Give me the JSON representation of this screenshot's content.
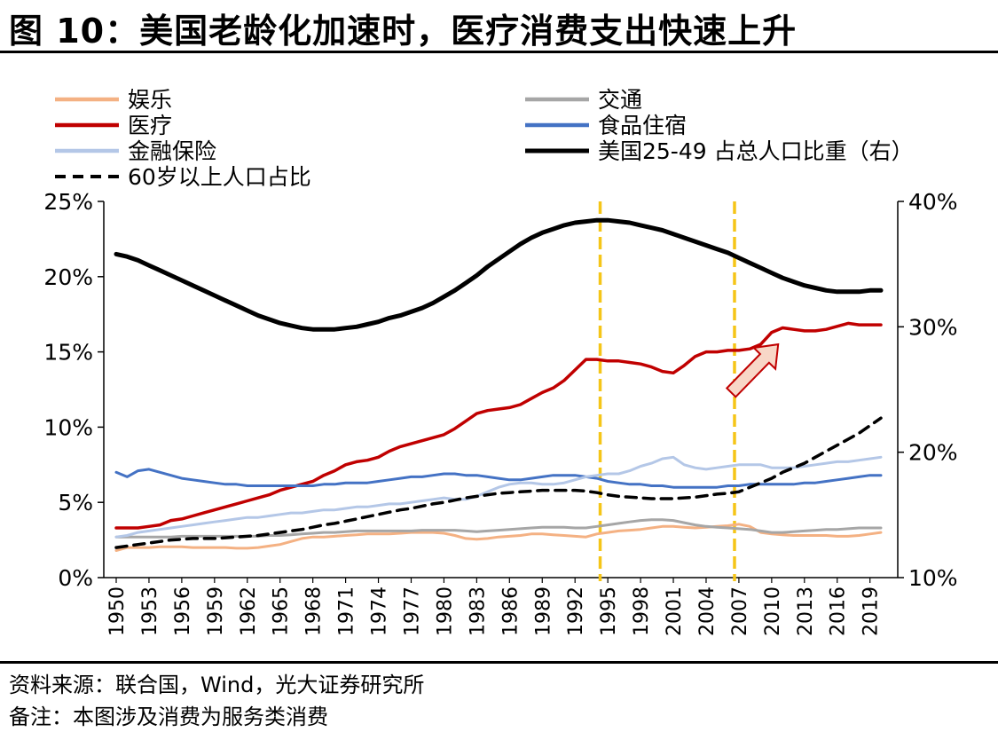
{
  "title": "图 10：美国老龄化加速时，医疗消费支出快速上升",
  "source": "资料来源：联合国，Wind，光大证券研究所",
  "note": "备注：本图涉及消费为服务类消费",
  "colors": {
    "entertainment": "#f4b183",
    "transport": "#a6a6a6",
    "medical": "#c00000",
    "food_housing": "#4472c4",
    "finance": "#b4c7e7",
    "us_25_49": "#000000",
    "aged_60": "#000000",
    "marker": "#f5c518"
  },
  "chart_data": {
    "type": "line",
    "x": [
      1950,
      1951,
      1952,
      1953,
      1954,
      1955,
      1956,
      1957,
      1958,
      1959,
      1960,
      1961,
      1962,
      1963,
      1964,
      1965,
      1966,
      1967,
      1968,
      1969,
      1970,
      1971,
      1972,
      1973,
      1974,
      1975,
      1976,
      1977,
      1978,
      1979,
      1980,
      1981,
      1982,
      1983,
      1984,
      1985,
      1986,
      1987,
      1988,
      1989,
      1990,
      1991,
      1992,
      1993,
      1994,
      1995,
      1996,
      1997,
      1998,
      1999,
      2000,
      2001,
      2002,
      2003,
      2004,
      2005,
      2006,
      2007,
      2008,
      2009,
      2010,
      2011,
      2012,
      2013,
      2014,
      2015,
      2016,
      2017,
      2018,
      2019,
      2020
    ],
    "x_tick_labels": [
      "1950",
      "1953",
      "1956",
      "1959",
      "1962",
      "1965",
      "1968",
      "1971",
      "1974",
      "1977",
      "1980",
      "1983",
      "1986",
      "1989",
      "1992",
      "1995",
      "1998",
      "2001",
      "2004",
      "2007",
      "2010",
      "2013",
      "2016",
      "2019"
    ],
    "y_left": {
      "ticks": [
        "0%",
        "5%",
        "10%",
        "15%",
        "20%",
        "25%"
      ],
      "range": [
        0,
        25
      ]
    },
    "y_right": {
      "ticks": [
        "10%",
        "20%",
        "30%",
        "40%"
      ],
      "range": [
        10,
        40
      ]
    },
    "vertical_markers": [
      1994.3,
      2006.6
    ],
    "arrow": {
      "from": [
        2006.3,
        12.3
      ],
      "to": [
        2010.6,
        15.5
      ]
    },
    "series": [
      {
        "name": "娱乐",
        "color_key": "entertainment",
        "axis": "left",
        "dash": false,
        "width": 3,
        "values": [
          1.8,
          2.0,
          2.0,
          2.0,
          2.05,
          2.05,
          2.05,
          2.0,
          2.0,
          2.0,
          2.0,
          1.95,
          1.95,
          2.0,
          2.1,
          2.2,
          2.4,
          2.6,
          2.7,
          2.7,
          2.75,
          2.8,
          2.85,
          2.9,
          2.9,
          2.9,
          2.95,
          3.0,
          3.0,
          3.0,
          2.95,
          2.8,
          2.6,
          2.55,
          2.6,
          2.7,
          2.75,
          2.8,
          2.9,
          2.9,
          2.85,
          2.8,
          2.75,
          2.7,
          2.9,
          3.0,
          3.1,
          3.15,
          3.2,
          3.3,
          3.4,
          3.4,
          3.35,
          3.3,
          3.35,
          3.4,
          3.45,
          3.55,
          3.4,
          3.0,
          2.9,
          2.85,
          2.8,
          2.8,
          2.8,
          2.8,
          2.75,
          2.75,
          2.8,
          2.9,
          3.0
        ]
      },
      {
        "name": "交通",
        "color_key": "transport",
        "axis": "left",
        "dash": false,
        "width": 3,
        "values": [
          2.7,
          2.7,
          2.7,
          2.7,
          2.7,
          2.7,
          2.75,
          2.75,
          2.75,
          2.75,
          2.75,
          2.75,
          2.75,
          2.75,
          2.8,
          2.8,
          2.85,
          2.9,
          2.95,
          3.0,
          3.0,
          3.05,
          3.1,
          3.1,
          3.1,
          3.1,
          3.1,
          3.1,
          3.15,
          3.15,
          3.15,
          3.15,
          3.1,
          3.05,
          3.1,
          3.15,
          3.2,
          3.25,
          3.3,
          3.35,
          3.35,
          3.35,
          3.3,
          3.3,
          3.4,
          3.5,
          3.6,
          3.7,
          3.8,
          3.85,
          3.85,
          3.8,
          3.65,
          3.5,
          3.4,
          3.35,
          3.3,
          3.25,
          3.2,
          3.1,
          3.0,
          3.0,
          3.05,
          3.1,
          3.15,
          3.2,
          3.2,
          3.25,
          3.3,
          3.3,
          3.3
        ]
      },
      {
        "name": "医疗",
        "color_key": "medical",
        "axis": "left",
        "dash": false,
        "width": 3.5,
        "values": [
          3.3,
          3.3,
          3.3,
          3.4,
          3.5,
          3.8,
          3.9,
          4.1,
          4.3,
          4.5,
          4.7,
          4.9,
          5.1,
          5.3,
          5.5,
          5.8,
          6.0,
          6.2,
          6.4,
          6.8,
          7.1,
          7.5,
          7.7,
          7.8,
          8.0,
          8.4,
          8.7,
          8.9,
          9.1,
          9.3,
          9.5,
          9.9,
          10.4,
          10.9,
          11.1,
          11.2,
          11.3,
          11.5,
          11.9,
          12.3,
          12.6,
          13.1,
          13.8,
          14.5,
          14.5,
          14.4,
          14.4,
          14.3,
          14.2,
          14.0,
          13.7,
          13.6,
          14.1,
          14.7,
          15.0,
          15.0,
          15.1,
          15.1,
          15.2,
          15.5,
          16.3,
          16.6,
          16.5,
          16.4,
          16.4,
          16.5,
          16.7,
          16.9,
          16.8,
          16.8,
          16.8
        ]
      },
      {
        "name": "食品住宿",
        "color_key": "food_housing",
        "axis": "left",
        "dash": false,
        "width": 3,
        "values": [
          7.0,
          6.7,
          7.1,
          7.2,
          7.0,
          6.8,
          6.6,
          6.5,
          6.4,
          6.3,
          6.2,
          6.2,
          6.1,
          6.1,
          6.1,
          6.1,
          6.1,
          6.1,
          6.1,
          6.2,
          6.2,
          6.3,
          6.3,
          6.3,
          6.4,
          6.5,
          6.6,
          6.7,
          6.7,
          6.8,
          6.9,
          6.9,
          6.8,
          6.8,
          6.7,
          6.6,
          6.5,
          6.5,
          6.6,
          6.7,
          6.8,
          6.8,
          6.8,
          6.7,
          6.6,
          6.4,
          6.3,
          6.2,
          6.2,
          6.1,
          6.1,
          6.0,
          6.0,
          6.0,
          6.0,
          6.0,
          6.1,
          6.1,
          6.2,
          6.2,
          6.2,
          6.2,
          6.2,
          6.3,
          6.3,
          6.4,
          6.5,
          6.6,
          6.7,
          6.8,
          6.8
        ]
      },
      {
        "name": "金融保险",
        "color_key": "finance",
        "axis": "left",
        "dash": false,
        "width": 3,
        "values": [
          2.7,
          2.8,
          3.0,
          3.1,
          3.2,
          3.3,
          3.4,
          3.5,
          3.6,
          3.7,
          3.8,
          3.9,
          4.0,
          4.0,
          4.1,
          4.2,
          4.3,
          4.3,
          4.4,
          4.5,
          4.5,
          4.6,
          4.7,
          4.7,
          4.8,
          4.9,
          4.9,
          5.0,
          5.1,
          5.2,
          5.3,
          5.2,
          5.2,
          5.4,
          5.7,
          6.0,
          6.2,
          6.3,
          6.3,
          6.2,
          6.2,
          6.3,
          6.5,
          6.7,
          6.8,
          6.9,
          6.9,
          7.1,
          7.4,
          7.6,
          7.9,
          8.0,
          7.5,
          7.3,
          7.2,
          7.3,
          7.4,
          7.5,
          7.5,
          7.5,
          7.3,
          7.3,
          7.3,
          7.4,
          7.5,
          7.6,
          7.7,
          7.7,
          7.8,
          7.9,
          8.0
        ]
      },
      {
        "name": "美国25-49 占总人口比重（右）",
        "color_key": "us_25_49",
        "axis": "right",
        "dash": false,
        "width": 5,
        "values": [
          35.8,
          35.6,
          35.3,
          34.9,
          34.5,
          34.1,
          33.7,
          33.3,
          32.9,
          32.5,
          32.1,
          31.7,
          31.3,
          30.9,
          30.6,
          30.3,
          30.1,
          29.9,
          29.8,
          29.8,
          29.8,
          29.9,
          30.0,
          30.2,
          30.4,
          30.7,
          30.9,
          31.2,
          31.5,
          31.9,
          32.4,
          32.9,
          33.5,
          34.1,
          34.8,
          35.4,
          36.0,
          36.6,
          37.1,
          37.5,
          37.8,
          38.1,
          38.3,
          38.4,
          38.5,
          38.5,
          38.4,
          38.3,
          38.1,
          37.9,
          37.7,
          37.4,
          37.1,
          36.8,
          36.5,
          36.2,
          35.9,
          35.5,
          35.1,
          34.7,
          34.3,
          33.9,
          33.6,
          33.3,
          33.1,
          32.9,
          32.8,
          32.8,
          32.8,
          32.9,
          32.9
        ]
      },
      {
        "name": "60岁以上人口占比",
        "color_key": "aged_60",
        "axis": "left",
        "dash": true,
        "width": 3.5,
        "values": [
          2.0,
          2.1,
          2.2,
          2.3,
          2.4,
          2.5,
          2.55,
          2.6,
          2.6,
          2.6,
          2.65,
          2.7,
          2.75,
          2.8,
          2.9,
          3.0,
          3.1,
          3.2,
          3.35,
          3.5,
          3.6,
          3.75,
          3.9,
          4.05,
          4.2,
          4.35,
          4.5,
          4.6,
          4.75,
          4.9,
          5.0,
          5.15,
          5.3,
          5.4,
          5.5,
          5.6,
          5.65,
          5.7,
          5.75,
          5.8,
          5.8,
          5.8,
          5.8,
          5.75,
          5.65,
          5.5,
          5.4,
          5.35,
          5.3,
          5.25,
          5.25,
          5.25,
          5.3,
          5.35,
          5.45,
          5.55,
          5.6,
          5.7,
          6.0,
          6.3,
          6.6,
          7.0,
          7.3,
          7.6,
          8.0,
          8.4,
          8.8,
          9.2,
          9.6,
          10.1,
          10.6
        ]
      }
    ],
    "legend": {
      "placement": "top",
      "columns": 2,
      "order": [
        "娱乐",
        "交通",
        "医疗",
        "食品住宿",
        "金融保险",
        "美国25-49 占总人口比重（右）",
        "60岁以上人口占比"
      ]
    }
  }
}
